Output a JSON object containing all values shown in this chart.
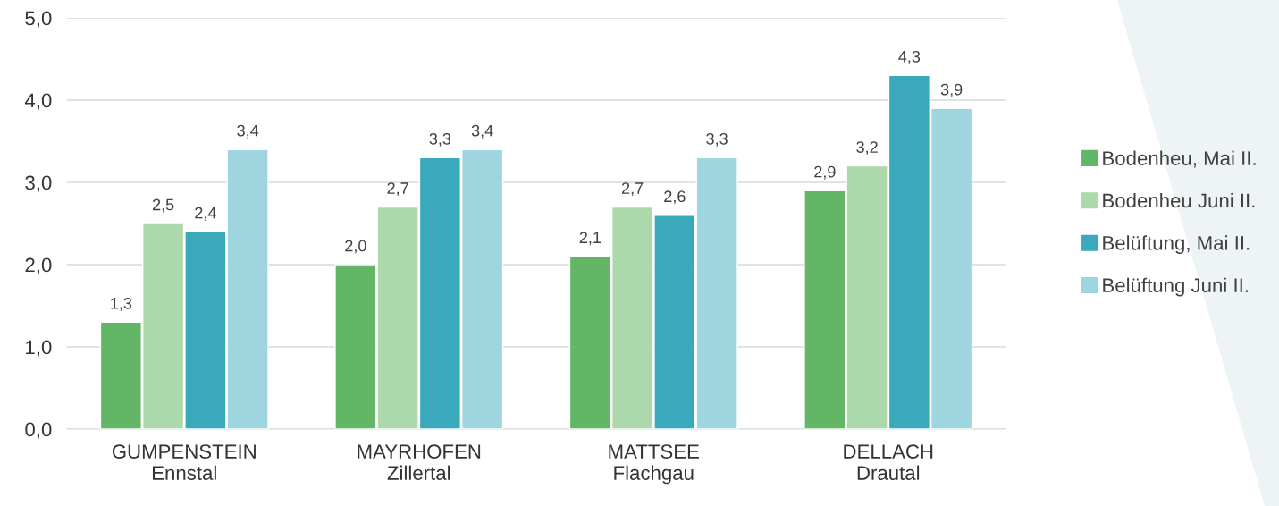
{
  "chart_data": {
    "type": "bar",
    "categories": [
      "GUMPENSTEIN\nEnnstal",
      "MAYRHOFEN\nZillertal",
      "MATTSEE\nFlachgau",
      "DELLACH\nDrautal"
    ],
    "series": [
      {
        "name": "Bodenheu, Mai II.",
        "color": "#62b665",
        "values": [
          1.3,
          2.0,
          2.1,
          2.9
        ],
        "value_labels": [
          "1,3",
          "2,0",
          "2,1",
          "2,9"
        ]
      },
      {
        "name": "Bodenheu Juni II.",
        "color": "#acd8ab",
        "values": [
          2.5,
          2.7,
          2.7,
          3.2
        ],
        "value_labels": [
          "2,5",
          "2,7",
          "2,7",
          "3,2"
        ]
      },
      {
        "name": "Belüftung, Mai II.",
        "color": "#3aa9bb",
        "values": [
          2.4,
          3.3,
          2.6,
          4.3
        ],
        "value_labels": [
          "2,4",
          "3,3",
          "2,6",
          "4,3"
        ]
      },
      {
        "name": "Belüftung Juni II.",
        "color": "#9ed5df",
        "values": [
          3.4,
          3.4,
          3.3,
          3.9
        ],
        "value_labels": [
          "3,4",
          "3,4",
          "3,3",
          "3,9"
        ]
      }
    ],
    "ylim": [
      0,
      5
    ],
    "yticks": [
      {
        "value": 0,
        "label": "0,0"
      },
      {
        "value": 1,
        "label": "1,0"
      },
      {
        "value": 2,
        "label": "2,0"
      },
      {
        "value": 3,
        "label": "3,0"
      },
      {
        "value": 4,
        "label": "4,0"
      },
      {
        "value": 5,
        "label": "5,0"
      }
    ],
    "grid": "y",
    "legend": "right",
    "marker": "square"
  }
}
